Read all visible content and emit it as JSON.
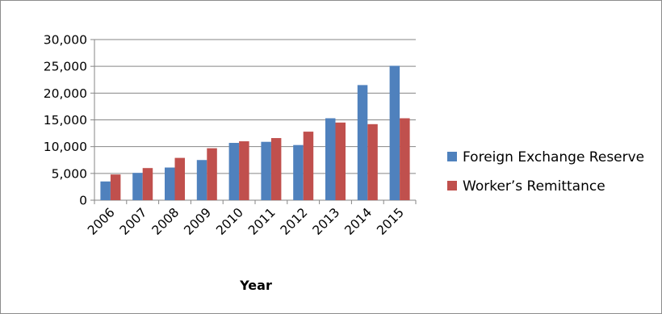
{
  "chart_data": {
    "type": "bar",
    "title": "",
    "xlabel": "Year",
    "ylabel": "",
    "categories": [
      "2006",
      "2007",
      "2008",
      "2009",
      "2010",
      "2011",
      "2012",
      "2013",
      "2014",
      "2015"
    ],
    "series": [
      {
        "name": "Foreign Exchange Reserve",
        "color": "#4f81bd",
        "values": [
          3500,
          5100,
          6100,
          7500,
          10700,
          10900,
          10300,
          15300,
          21500,
          25100
        ]
      },
      {
        "name": "Worker’s Remittance",
        "color": "#c0504d",
        "values": [
          4800,
          6000,
          7900,
          9700,
          11000,
          11600,
          12800,
          14500,
          14200,
          15300
        ]
      }
    ],
    "ylim": [
      0,
      30000
    ],
    "yticks": [
      0,
      5000,
      10000,
      15000,
      20000,
      25000,
      30000
    ],
    "ytick_labels": [
      "0",
      "5,000",
      "10,000",
      "15,000",
      "20,000",
      "25,000",
      "30,000"
    ],
    "grid": true,
    "legend_position": "right"
  }
}
